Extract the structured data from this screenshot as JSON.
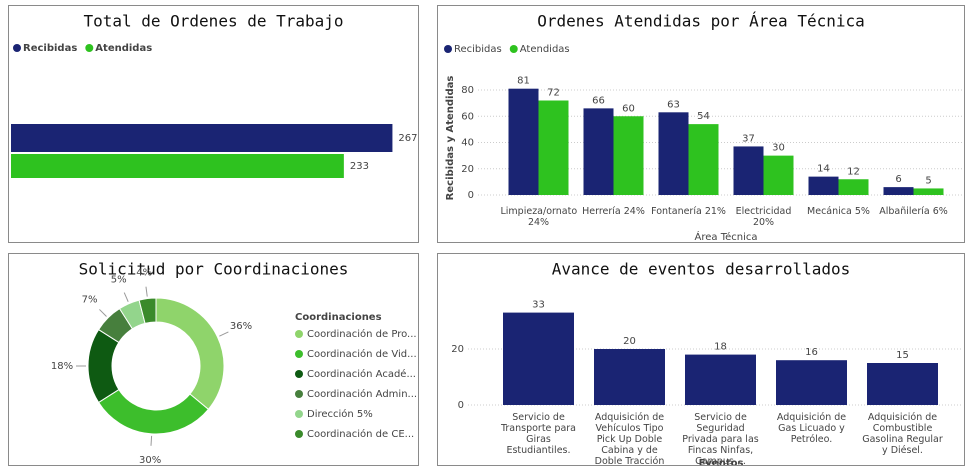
{
  "chart_data": [
    {
      "type": "hbar",
      "title": "Total de Ordenes de Trabajo",
      "series": [
        {
          "name": "Recibidas",
          "color": "#1a2473",
          "values": [
            267
          ]
        },
        {
          "name": "Atendidas",
          "color": "#2ec21f",
          "values": [
            233
          ]
        }
      ],
      "xlim": [
        0,
        280
      ]
    },
    {
      "type": "bar",
      "title": "Ordenes Atendidas por Área Técnica",
      "x_label": "Área Técnica",
      "y_label": "Recibidas y Atendidas",
      "categories": [
        "Limpieza/ornato 24%",
        "Herrería 24%",
        "Fontanería 21%",
        "Electricidad 20%",
        "Mecánica 5%",
        "Albañilería 6%"
      ],
      "series": [
        {
          "name": "Recibidas",
          "color": "#1a2473",
          "values": [
            81,
            66,
            63,
            37,
            14,
            6
          ]
        },
        {
          "name": "Atendidas",
          "color": "#2ec21f",
          "values": [
            72,
            60,
            54,
            30,
            12,
            5
          ]
        }
      ],
      "ylim": [
        0,
        88
      ],
      "yticks": [
        0,
        20,
        40,
        60,
        80
      ],
      "grid": true
    },
    {
      "type": "donut",
      "title": "Solicitud por Coordinaciones",
      "legend_title": "Coordinaciones",
      "categories": [
        "Coordinación de Pro...",
        "Coordinación de Vid...",
        "Coordinación Acadé...",
        "Coordinación Admin...",
        "Dirección 5%",
        "Coordinación de CE..."
      ],
      "values": [
        36,
        30,
        18,
        7,
        5,
        4
      ],
      "value_labels": [
        "36%",
        "30%",
        "18%",
        "7%",
        "5%",
        "4%"
      ],
      "colors": [
        "#8fd46b",
        "#3dbe2c",
        "#0e5a12",
        "#477f3d",
        "#93d58c",
        "#3a8a2b"
      ]
    },
    {
      "type": "bar",
      "title": "Avance de eventos desarrollados",
      "x_label": "Eventos",
      "categories": [
        "Servicio de Transporte para Giras Estudiantiles.",
        "Adquisición de Vehículos Tipo Pick Up Doble Cabina y de Doble Tracción",
        "Servicio de Seguridad Privada para las Fincas Ninfas, Campus ...",
        "Adquisición de Gas Licuado y Petróleo.",
        "Adquisición de Combustible Gasolina Regular y Diésel."
      ],
      "values": [
        33,
        20,
        18,
        16,
        15
      ],
      "color": "#1a2473",
      "ylim": [
        0,
        35
      ],
      "yticks": [
        0,
        20
      ],
      "grid": true
    }
  ]
}
